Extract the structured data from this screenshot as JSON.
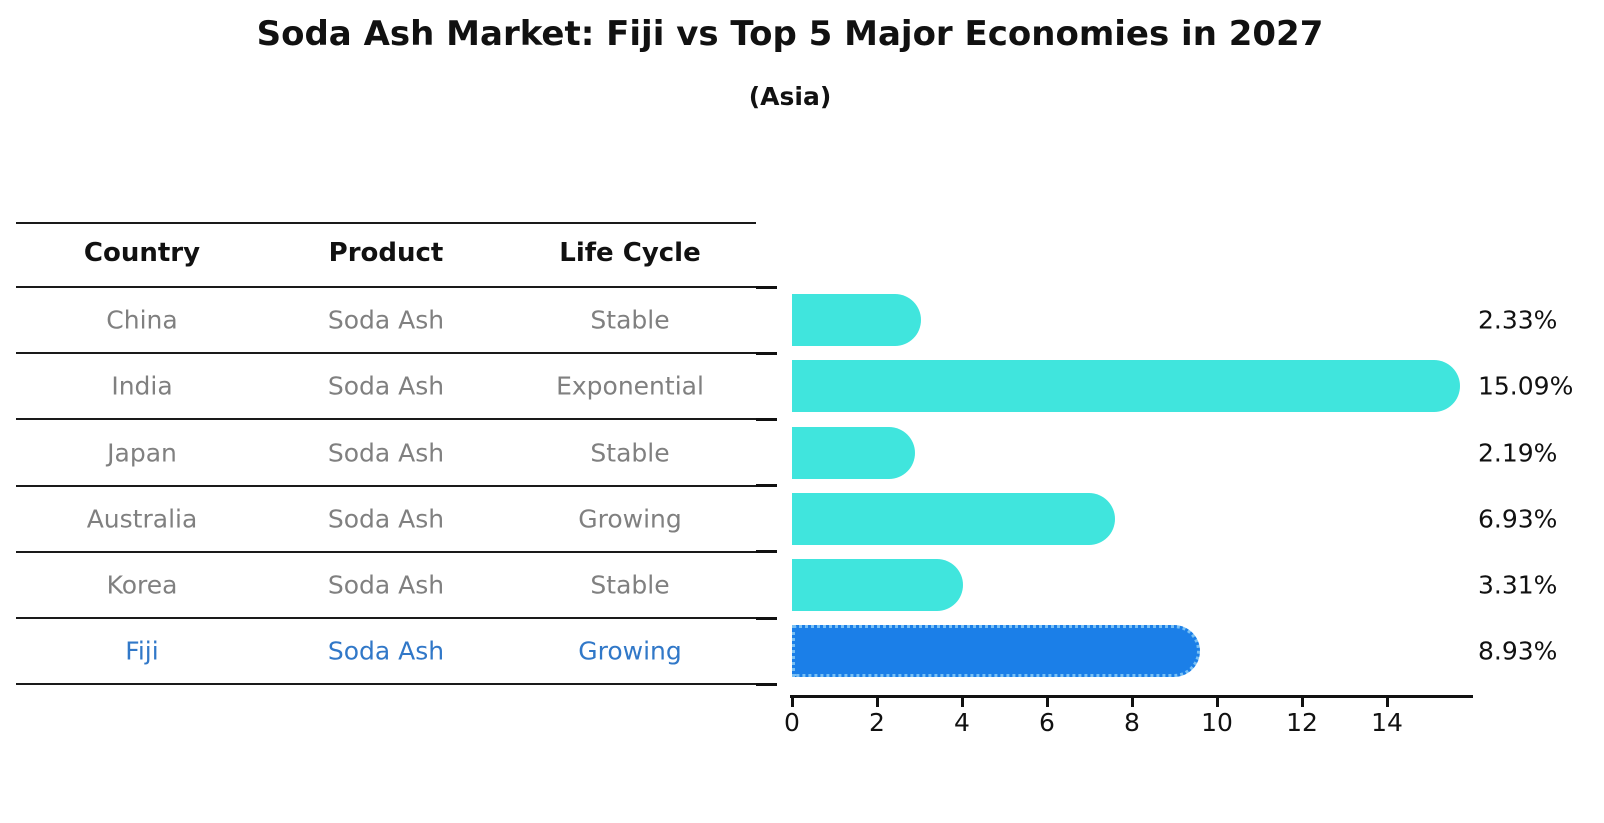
{
  "title": "Soda Ash Market: Fiji vs Top 5 Major Economies in 2027",
  "subtitle": "(Asia)",
  "table": {
    "headers": [
      "Country",
      "Product",
      "Life Cycle"
    ],
    "rows": [
      {
        "country": "China",
        "product": "Soda Ash",
        "life_cycle": "Stable",
        "highlight": false
      },
      {
        "country": "India",
        "product": "Soda Ash",
        "life_cycle": "Exponential",
        "highlight": false
      },
      {
        "country": "Japan",
        "product": "Soda Ash",
        "life_cycle": "Stable",
        "highlight": false
      },
      {
        "country": "Australia",
        "product": "Soda Ash",
        "life_cycle": "Growing",
        "highlight": false
      },
      {
        "country": "Korea",
        "product": "Soda Ash",
        "life_cycle": "Stable",
        "highlight": false
      },
      {
        "country": "Fiji",
        "product": "Soda Ash",
        "life_cycle": "Growing",
        "highlight": true
      }
    ]
  },
  "chart_data": {
    "type": "bar",
    "orientation": "horizontal",
    "title": "Soda Ash Market: Fiji vs Top 5 Major Economies in 2027",
    "subtitle": "(Asia)",
    "categories": [
      "China",
      "India",
      "Japan",
      "Australia",
      "Korea",
      "Fiji"
    ],
    "values": [
      2.33,
      15.09,
      2.19,
      6.93,
      3.31,
      8.93
    ],
    "bar_labels": [
      "2.33%",
      "15.09%",
      "2.19%",
      "6.93%",
      "3.31%",
      "8.93%"
    ],
    "xticks": [
      0,
      2,
      4,
      6,
      8,
      10,
      12,
      14
    ],
    "xlim": [
      0,
      16
    ],
    "grid": false,
    "legend": false,
    "highlight_index": 5
  },
  "colors": {
    "bar": "#40E5DD",
    "highlight_bar": "#1B7FE8",
    "highlight_border": "#79C0F4",
    "highlight_text": "#3178C8",
    "row_text": "#808080",
    "header_text": "#111111",
    "axis": "#111111"
  }
}
